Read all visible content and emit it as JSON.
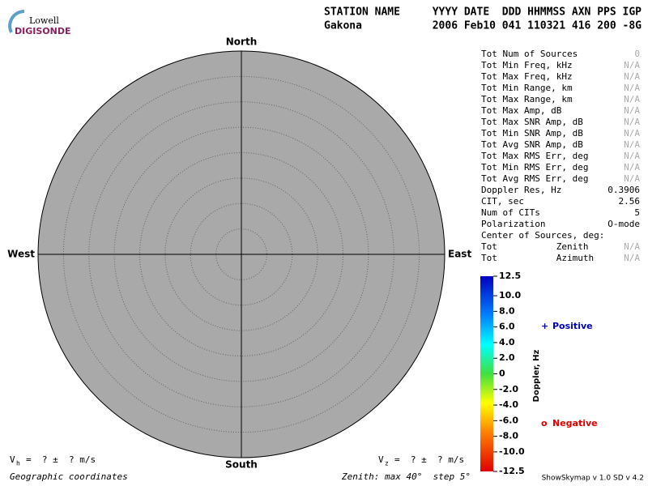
{
  "logo": {
    "line1": "Lowell",
    "line2": "DIGISONDE"
  },
  "header": {
    "station_label": "STATION NAME",
    "time_label": "YYYY DATE  DDD HHMMSS AXN PPS IGP",
    "station": "Gakona",
    "time": "2006 Feb10 041 110321 416 200 -8G"
  },
  "compass": {
    "north": "North",
    "south": "South",
    "west": "West",
    "east": "East"
  },
  "stats": [
    [
      "Tot Num of Sources",
      "0"
    ],
    [
      "Tot Min Freq, kHz",
      "N/A"
    ],
    [
      "Tot Max Freq, kHz",
      "N/A"
    ],
    [
      "Tot Min Range, km",
      "N/A"
    ],
    [
      "Tot Max Range, km",
      "N/A"
    ],
    [
      "Tot Max Amp, dB",
      "N/A"
    ],
    [
      "Tot Max SNR Amp, dB",
      "N/A"
    ],
    [
      "Tot Min SNR Amp, dB",
      "N/A"
    ],
    [
      "Tot Avg SNR Amp, dB",
      "N/A"
    ],
    [
      "Tot Max RMS Err, deg",
      "N/A"
    ],
    [
      "Tot Min RMS Err, deg",
      "N/A"
    ],
    [
      "Tot Avg RMS Err, deg",
      "N/A"
    ],
    [
      "Doppler Res, Hz",
      "0.3906"
    ],
    [
      "CIT, sec",
      "2.56"
    ],
    [
      "Num of CITs",
      "5"
    ],
    [
      "Polarization",
      "O-mode"
    ],
    [
      "Center of Sources, deg:"
    ],
    [
      "Tot           Zenith",
      "N/A"
    ],
    [
      "Tot           Azimuth",
      "N/A"
    ]
  ],
  "colorbar": {
    "label": "Doppler, Hz",
    "range": [
      -12.5,
      12.5
    ],
    "ticks": [
      12.5,
      {
        "value": 10,
        "label": "10.0"
      },
      {
        "value": 8,
        "label": "8.0"
      },
      {
        "value": 6,
        "label": "6.0"
      },
      {
        "value": 4,
        "label": "4.0"
      },
      {
        "value": 2,
        "label": "2.0"
      },
      0,
      {
        "value": -2,
        "label": "-2.0"
      },
      {
        "value": -4,
        "label": "-4.0"
      },
      {
        "value": -6,
        "label": "-6.0"
      },
      {
        "value": -8,
        "label": "-8.0"
      },
      {
        "value": -10,
        "label": "-10.0"
      },
      -12.5
    ]
  },
  "legend": {
    "positive": {
      "symbol": "+",
      "text": "Positive"
    },
    "negative": {
      "symbol": "o",
      "text": "Negative"
    }
  },
  "footer": {
    "vh": {
      "symbol": "V",
      "sub": "h",
      "text": "=  ? ±  ? m/s"
    },
    "vz": {
      "symbol": "V",
      "sub": "z",
      "text": "=  ? ±  ? m/s"
    },
    "coordinates": "Geographic coordinates",
    "zenith": "Zenith: max 40°  step 5°",
    "version": "ShowSkymap v 1.0  SD v 4.2"
  }
}
